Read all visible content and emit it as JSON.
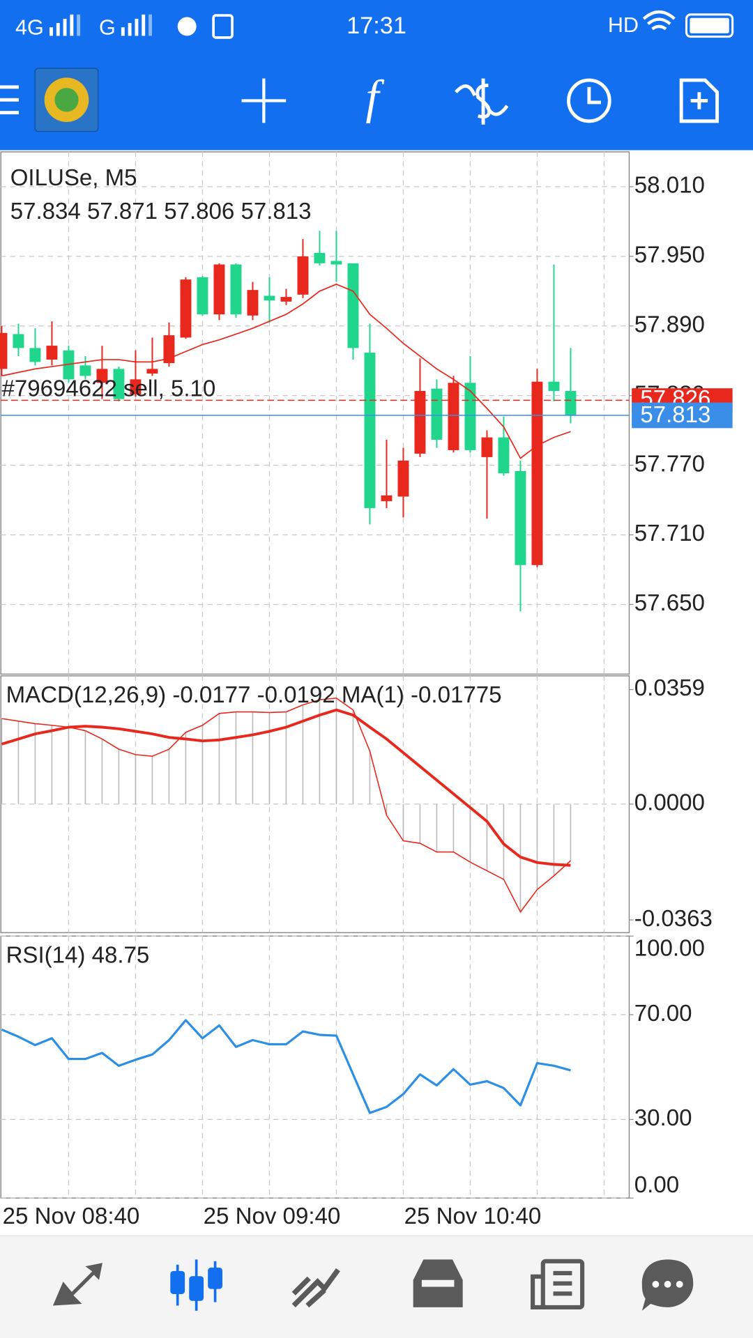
{
  "status_bar": {
    "network1": "4G",
    "network2": "G",
    "time": "17:31",
    "hd": "HD"
  },
  "chart_data": [
    {
      "type": "candlestick",
      "title": "OILUSe, M5",
      "categories": [
        "25 Nov 08:40",
        null,
        null,
        null,
        null,
        null,
        null,
        null,
        null,
        null,
        null,
        null,
        "25 Nov 09:40",
        null,
        null,
        null,
        null,
        null,
        null,
        null,
        null,
        null,
        null,
        null,
        "25 Nov 10:40",
        null,
        null,
        null,
        null,
        null,
        null,
        null,
        null,
        null,
        null
      ],
      "open": [
        57.853,
        57.883,
        57.871,
        57.861,
        57.869,
        57.856,
        57.841,
        57.853,
        57.831,
        57.849,
        57.858,
        57.88,
        57.932,
        57.9,
        57.943,
        57.899,
        57.916,
        57.911,
        57.917,
        57.953,
        57.946,
        57.944,
        57.867,
        57.739,
        57.743,
        57.78,
        57.836,
        57.783,
        57.841,
        57.777,
        57.794,
        57.765,
        57.684,
        57.842,
        57.834
      ],
      "high": [
        57.89,
        57.892,
        57.888,
        57.894,
        57.873,
        57.864,
        57.873,
        57.855,
        57.869,
        57.88,
        57.893,
        57.932,
        57.933,
        57.944,
        57.944,
        57.928,
        57.932,
        57.922,
        57.965,
        57.972,
        57.972,
        57.944,
        57.892,
        57.792,
        57.785,
        57.862,
        57.844,
        57.847,
        57.864,
        57.8,
        57.812,
        57.774,
        57.853,
        57.943,
        57.871
      ],
      "low": [
        57.847,
        57.864,
        57.856,
        57.856,
        57.841,
        57.844,
        57.827,
        57.825,
        57.829,
        57.847,
        57.855,
        57.879,
        57.899,
        57.895,
        57.897,
        57.895,
        57.893,
        57.908,
        57.914,
        57.942,
        57.928,
        57.861,
        57.719,
        57.733,
        57.725,
        57.777,
        57.785,
        57.781,
        57.781,
        57.724,
        57.761,
        57.644,
        57.682,
        57.825,
        57.806
      ],
      "close": [
        57.884,
        57.871,
        57.859,
        57.873,
        57.844,
        57.847,
        57.853,
        57.827,
        57.844,
        57.853,
        57.882,
        57.93,
        57.9,
        57.943,
        57.9,
        57.921,
        57.912,
        57.915,
        57.95,
        57.944,
        57.943,
        57.871,
        57.733,
        57.744,
        57.774,
        57.834,
        57.792,
        57.841,
        57.783,
        57.794,
        57.763,
        57.684,
        57.842,
        57.834,
        57.813
      ],
      "up_color": "#e8271d",
      "down_color": "#1fd68c",
      "ma_values": [
        57.847,
        57.85,
        57.853,
        57.855,
        57.857,
        57.859,
        57.861,
        57.861,
        57.859,
        57.859,
        57.862,
        57.868,
        57.874,
        57.878,
        57.883,
        57.888,
        57.894,
        57.9,
        57.909,
        57.92,
        57.926,
        57.92,
        57.9,
        57.888,
        57.875,
        57.864,
        57.853,
        57.844,
        57.834,
        57.819,
        57.803,
        57.776,
        57.787,
        57.794,
        57.799
      ],
      "ma_color": "#e8271d",
      "order": {
        "label": "#79694622 sell, 5.10",
        "price": 57.826,
        "color": "#e8271d"
      },
      "price_color": "#3b8ee8",
      "ylim": [
        57.59,
        58.04
      ],
      "yticks": [
        {
          "value": 58.01,
          "label": "58.010"
        },
        {
          "value": 57.95,
          "label": "57.950"
        },
        {
          "value": 57.89,
          "label": "57.890"
        },
        {
          "value": 57.83,
          "label": "57.830"
        },
        {
          "value": 57.77,
          "label": "57.770"
        },
        {
          "value": 57.71,
          "label": "57.710"
        },
        {
          "value": 57.65,
          "label": "57.650"
        }
      ],
      "grid": true
    },
    {
      "type": "macd",
      "title": "MACD(12,26,9)",
      "histogram": [
        0.0268,
        0.026,
        0.0252,
        0.0247,
        0.0241,
        0.023,
        0.0204,
        0.0172,
        0.0155,
        0.015,
        0.0172,
        0.0225,
        0.0247,
        0.0284,
        0.0289,
        0.0289,
        0.0287,
        0.0289,
        0.0311,
        0.0327,
        0.0332,
        0.0295,
        0.0166,
        -0.0035,
        -0.0115,
        -0.0123,
        -0.015,
        -0.015,
        -0.0182,
        -0.0209,
        -0.0236,
        -0.0338,
        -0.0268,
        -0.0225,
        -0.0177
      ],
      "histogram_color": "#b8b8b8",
      "signal": [
        0.0188,
        0.0204,
        0.022,
        0.023,
        0.0241,
        0.0244,
        0.0241,
        0.0236,
        0.0228,
        0.022,
        0.0209,
        0.0204,
        0.0198,
        0.0201,
        0.0209,
        0.0217,
        0.0228,
        0.0241,
        0.026,
        0.0279,
        0.0295,
        0.0279,
        0.0241,
        0.0204,
        0.0161,
        0.0118,
        0.0075,
        0.0032,
        -0.0011,
        -0.0054,
        -0.0125,
        -0.0166,
        -0.0183,
        -0.0189,
        -0.0192
      ],
      "signal_color": "#e8271d",
      "ma_name": "MA(1)",
      "ma_values": [
        0.0268,
        0.026,
        0.0252,
        0.0247,
        0.0241,
        0.023,
        0.0204,
        0.0172,
        0.0155,
        0.015,
        0.0172,
        0.0225,
        0.0247,
        0.0284,
        0.0289,
        0.0289,
        0.0287,
        0.0289,
        0.0311,
        0.0327,
        0.0332,
        0.0295,
        0.0166,
        -0.0035,
        -0.0115,
        -0.0123,
        -0.015,
        -0.015,
        -0.0182,
        -0.0209,
        -0.0236,
        -0.0338,
        -0.0268,
        -0.0225,
        -0.01775
      ],
      "ma_color": "#e8271d",
      "ylim": [
        -0.0403,
        0.0402
      ],
      "yticks": [
        0.0359,
        {
          "value": 0,
          "label": "0.0000"
        },
        -0.0363
      ],
      "zero_line": true
    },
    {
      "type": "line",
      "title": "RSI(14)",
      "values": [
        64.3,
        61.6,
        58.4,
        61.0,
        53.1,
        53.1,
        55.4,
        50.5,
        52.8,
        54.8,
        60.3,
        67.9,
        61.0,
        65.9,
        57.7,
        60.3,
        58.7,
        58.7,
        63.6,
        62.3,
        62.0,
        47.2,
        32.5,
        34.8,
        39.7,
        47.2,
        43.0,
        49.2,
        43.3,
        44.6,
        42.0,
        35.4,
        51.5,
        50.5,
        48.75
      ],
      "color": "#2b8fe6",
      "ylim": [
        0,
        100
      ],
      "yticks": [
        {
          "value": 100,
          "label": "100.00"
        },
        {
          "value": 70,
          "label": "70.00"
        },
        {
          "value": 30,
          "label": "30.00"
        },
        {
          "value": 0,
          "label": "0.00"
        }
      ],
      "grid": true
    }
  ]
}
